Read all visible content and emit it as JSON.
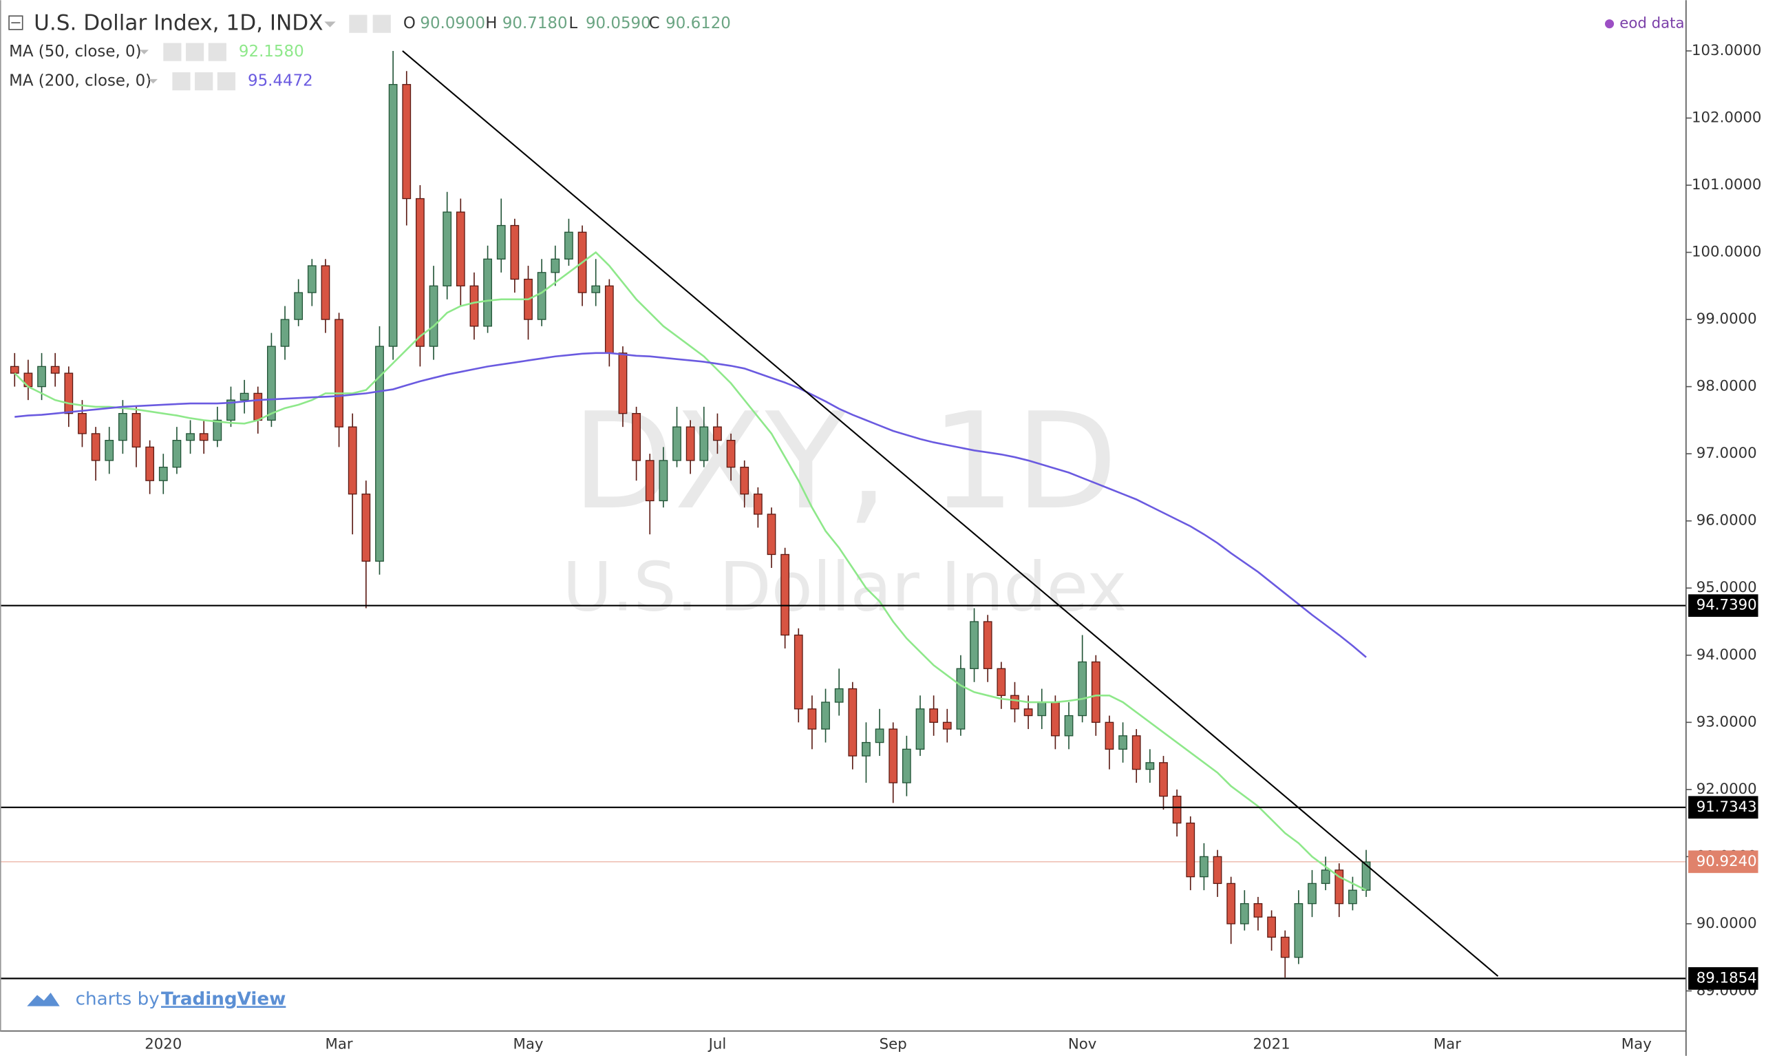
{
  "chart_data": {
    "type": "candlestick",
    "title": "U.S. Dollar Index, 1D, INDX",
    "ohlc": [
      {
        "label": "O",
        "value": "90.0900"
      },
      {
        "label": "H",
        "value": "90.7180"
      },
      {
        "label": "L",
        "value": "90.0590"
      },
      {
        "label": "C",
        "value": "90.6120"
      }
    ],
    "watermark": [
      "DXY, 1D",
      "U.S. Dollar Index"
    ],
    "source": "eod data",
    "branding": {
      "prefix": "charts by",
      "name": "TradingView"
    },
    "categories": [
      null,
      null,
      null,
      null,
      null,
      null,
      null,
      null,
      null,
      null,
      null,
      "2020",
      null,
      null,
      null,
      null,
      null,
      null,
      null,
      null,
      null,
      null,
      null,
      null,
      "Mar",
      null,
      null,
      null,
      null,
      null,
      null,
      null,
      null,
      null,
      null,
      null,
      null,
      null,
      "May",
      null,
      null,
      null,
      null,
      null,
      null,
      null,
      null,
      null,
      null,
      null,
      null,
      null,
      "Jul",
      null,
      null,
      null,
      null,
      null,
      null,
      null,
      null,
      null,
      null,
      null,
      null,
      "Sep",
      null,
      null,
      null,
      null,
      null,
      null,
      null,
      null,
      null,
      null,
      null,
      null,
      null,
      "Nov",
      null,
      null,
      null,
      null,
      null,
      null,
      null,
      null,
      null,
      null,
      null,
      null,
      null,
      "2021",
      null,
      null,
      null,
      null,
      null,
      null,
      null,
      null,
      null,
      null,
      null,
      null,
      "Mar",
      null,
      null,
      null,
      null,
      null,
      null,
      null,
      null,
      null,
      null,
      null,
      null,
      null,
      "May",
      null,
      null,
      null
    ],
    "open": [
      98.3,
      98.2,
      98.0,
      98.3,
      98.2,
      97.6,
      97.3,
      96.9,
      97.2,
      97.6,
      97.1,
      96.6,
      96.8,
      97.2,
      97.3,
      97.2,
      97.5,
      97.8,
      97.9,
      97.5,
      98.6,
      99.0,
      99.4,
      99.8,
      99.0,
      97.4,
      96.4,
      95.4,
      98.6,
      102.5,
      100.8,
      98.6,
      99.5,
      100.6,
      99.5,
      98.9,
      99.9,
      100.4,
      99.6,
      99.0,
      99.7,
      99.9,
      100.3,
      99.4,
      99.5,
      98.5,
      97.6,
      96.9,
      96.3,
      96.9,
      97.4,
      96.9,
      97.4,
      97.2,
      96.8,
      96.4,
      96.1,
      95.5,
      94.3,
      93.2,
      92.9,
      93.3,
      93.5,
      92.5,
      92.7,
      92.9,
      92.1,
      92.6,
      93.2,
      93.0,
      92.9,
      93.8,
      94.5,
      93.8,
      93.4,
      93.2,
      93.1,
      93.3,
      92.8,
      93.1,
      93.9,
      93.0,
      92.6,
      92.8,
      92.3,
      92.4,
      91.9,
      91.5,
      90.7,
      91.0,
      90.6,
      90.0,
      90.3,
      90.1,
      89.8,
      89.5,
      90.3,
      90.6,
      90.8,
      90.3,
      90.5,
      null,
      null,
      null,
      null,
      null,
      null,
      null,
      null,
      null,
      null,
      null,
      null,
      null,
      null,
      null,
      null,
      null,
      null,
      null,
      null,
      null,
      null,
      null
    ],
    "high": [
      98.5,
      98.4,
      98.5,
      98.5,
      98.3,
      97.8,
      97.4,
      97.4,
      97.8,
      97.7,
      97.2,
      97.0,
      97.4,
      97.5,
      97.5,
      97.7,
      98.0,
      98.1,
      98.0,
      98.8,
      99.2,
      99.6,
      99.9,
      99.9,
      99.1,
      97.6,
      96.6,
      98.9,
      103.0,
      102.7,
      101.0,
      99.8,
      100.9,
      100.8,
      99.7,
      100.1,
      100.8,
      100.5,
      99.8,
      99.9,
      100.1,
      100.5,
      100.4,
      99.9,
      99.6,
      98.6,
      97.7,
      97.0,
      97.1,
      97.7,
      97.5,
      97.7,
      97.6,
      97.3,
      96.9,
      96.5,
      96.2,
      95.6,
      94.4,
      93.4,
      93.5,
      93.8,
      93.6,
      93.0,
      93.2,
      93.0,
      92.8,
      93.4,
      93.4,
      93.2,
      94.0,
      94.7,
      94.6,
      93.9,
      93.6,
      93.4,
      93.5,
      93.4,
      93.3,
      94.3,
      94.0,
      93.1,
      93.0,
      92.9,
      92.6,
      92.5,
      92.0,
      91.6,
      91.2,
      91.1,
      90.7,
      90.5,
      90.4,
      90.2,
      89.9,
      90.5,
      90.8,
      91.0,
      90.9,
      90.7,
      91.1,
      null,
      null,
      null,
      null,
      null,
      null,
      null,
      null,
      null,
      null,
      null,
      null,
      null,
      null,
      null,
      null,
      null,
      null,
      null,
      null,
      null,
      null,
      null
    ],
    "low": [
      98.0,
      97.8,
      97.8,
      98.0,
      97.4,
      97.1,
      96.6,
      96.7,
      97.0,
      96.8,
      96.4,
      96.4,
      96.7,
      97.0,
      97.0,
      97.1,
      97.4,
      97.6,
      97.3,
      97.4,
      98.4,
      98.9,
      99.2,
      98.8,
      97.1,
      95.8,
      94.7,
      95.2,
      98.4,
      100.4,
      98.3,
      98.4,
      99.3,
      99.2,
      98.7,
      98.8,
      99.7,
      99.4,
      98.7,
      98.9,
      99.5,
      99.8,
      99.2,
      99.2,
      98.3,
      97.4,
      96.6,
      95.8,
      96.2,
      96.8,
      96.7,
      96.8,
      97.0,
      96.6,
      96.2,
      95.9,
      95.3,
      94.1,
      93.0,
      92.6,
      92.7,
      93.1,
      92.3,
      92.1,
      92.5,
      91.8,
      91.9,
      92.5,
      92.8,
      92.7,
      92.8,
      93.6,
      93.6,
      93.2,
      93.0,
      92.9,
      92.9,
      92.6,
      92.6,
      93.0,
      92.8,
      92.3,
      92.4,
      92.1,
      92.1,
      91.7,
      91.3,
      90.5,
      90.5,
      90.4,
      89.7,
      89.9,
      89.9,
      89.6,
      89.2,
      89.4,
      90.1,
      90.5,
      90.1,
      90.2,
      90.4,
      null,
      null,
      null,
      null,
      null,
      null,
      null,
      null,
      null,
      null,
      null,
      null,
      null,
      null,
      null,
      null,
      null,
      null,
      null,
      null,
      null,
      null,
      null
    ],
    "close": [
      98.2,
      98.0,
      98.3,
      98.2,
      97.6,
      97.3,
      96.9,
      97.2,
      97.6,
      97.1,
      96.6,
      96.8,
      97.2,
      97.3,
      97.2,
      97.5,
      97.8,
      97.9,
      97.5,
      98.6,
      99.0,
      99.4,
      99.8,
      99.0,
      97.4,
      96.4,
      95.4,
      98.6,
      102.5,
      100.8,
      98.6,
      99.5,
      100.6,
      99.5,
      98.9,
      99.9,
      100.4,
      99.6,
      99.0,
      99.7,
      99.9,
      100.3,
      99.4,
      99.5,
      98.5,
      97.6,
      96.9,
      96.3,
      96.9,
      97.4,
      96.9,
      97.4,
      97.2,
      96.8,
      96.4,
      96.1,
      95.5,
      94.3,
      93.2,
      92.9,
      93.3,
      93.5,
      92.5,
      92.7,
      92.9,
      92.1,
      92.6,
      93.2,
      93.0,
      92.9,
      93.8,
      94.5,
      93.8,
      93.4,
      93.2,
      93.1,
      93.3,
      92.8,
      93.1,
      93.9,
      93.0,
      92.6,
      92.8,
      92.3,
      92.4,
      91.9,
      91.5,
      90.7,
      91.0,
      90.6,
      90.0,
      90.3,
      90.1,
      89.8,
      89.5,
      90.3,
      90.6,
      90.8,
      90.3,
      90.5,
      90.92,
      null,
      null,
      null,
      null,
      null,
      null,
      null,
      null,
      null,
      null,
      null,
      null,
      null,
      null,
      null,
      null,
      null,
      null,
      null,
      null,
      null,
      null,
      null
    ],
    "colors": {
      "up": "#6ba583",
      "up_border": "#225437",
      "down": "#d75442",
      "down_border": "#5b1a13"
    },
    "series": [
      {
        "name": "MA (50, close, 0)",
        "legend_value": "92.1580",
        "color": "#8ee88a",
        "values": [
          98.2,
          98.0,
          97.9,
          97.8,
          97.75,
          97.72,
          97.7,
          97.7,
          97.68,
          97.66,
          97.63,
          97.6,
          97.57,
          97.53,
          97.5,
          97.48,
          97.46,
          97.45,
          97.5,
          97.6,
          97.68,
          97.73,
          97.8,
          97.9,
          97.9,
          97.9,
          97.95,
          98.15,
          98.35,
          98.55,
          98.75,
          98.9,
          99.1,
          99.2,
          99.25,
          99.28,
          99.3,
          99.3,
          99.3,
          99.4,
          99.55,
          99.7,
          99.85,
          100.0,
          99.8,
          99.55,
          99.3,
          99.1,
          98.9,
          98.75,
          98.6,
          98.45,
          98.25,
          98.05,
          97.8,
          97.55,
          97.3,
          96.95,
          96.6,
          96.2,
          95.85,
          95.6,
          95.3,
          95.0,
          94.8,
          94.5,
          94.25,
          94.05,
          93.85,
          93.7,
          93.55,
          93.45,
          93.4,
          93.35,
          93.33,
          93.3,
          93.3,
          93.3,
          93.32,
          93.35,
          93.4,
          93.4,
          93.3,
          93.15,
          93.0,
          92.85,
          92.7,
          92.55,
          92.4,
          92.25,
          92.05,
          91.9,
          91.75,
          91.55,
          91.35,
          91.2,
          91.0,
          90.85,
          90.7,
          90.6,
          90.5,
          null,
          null,
          null,
          null,
          null,
          null,
          null,
          null,
          null,
          null,
          null,
          null,
          null,
          null,
          null,
          null,
          null,
          null,
          null,
          null,
          null,
          null,
          null
        ]
      },
      {
        "name": "MA (200, close, 0)",
        "legend_value": "95.4472",
        "color": "#6a5ae0",
        "values": [
          97.55,
          97.57,
          97.58,
          97.6,
          97.62,
          97.64,
          97.66,
          97.68,
          97.7,
          97.71,
          97.72,
          97.73,
          97.74,
          97.75,
          97.75,
          97.75,
          97.76,
          97.78,
          97.8,
          97.81,
          97.82,
          97.83,
          97.84,
          97.85,
          97.86,
          97.88,
          97.9,
          97.93,
          97.96,
          98.02,
          98.08,
          98.13,
          98.18,
          98.22,
          98.26,
          98.3,
          98.33,
          98.36,
          98.39,
          98.42,
          98.45,
          98.47,
          98.49,
          98.5,
          98.5,
          98.48,
          98.46,
          98.45,
          98.43,
          98.41,
          98.39,
          98.37,
          98.34,
          98.31,
          98.27,
          98.2,
          98.13,
          98.06,
          97.98,
          97.88,
          97.78,
          97.67,
          97.58,
          97.5,
          97.42,
          97.34,
          97.28,
          97.22,
          97.17,
          97.13,
          97.09,
          97.05,
          97.02,
          96.99,
          96.95,
          96.9,
          96.84,
          96.78,
          96.72,
          96.64,
          96.56,
          96.48,
          96.4,
          96.32,
          96.22,
          96.12,
          96.02,
          95.92,
          95.8,
          95.67,
          95.52,
          95.38,
          95.24,
          95.08,
          94.92,
          94.76,
          94.6,
          94.45,
          94.3,
          94.14,
          93.97,
          null,
          null,
          null,
          null,
          null,
          null,
          null,
          null,
          null,
          null,
          null,
          null,
          null,
          null,
          null,
          null,
          null,
          null,
          null,
          null,
          null,
          null,
          null
        ]
      }
    ],
    "ylim": [
      88.403,
      103.755
    ],
    "yticks": [
      {
        "value": 89,
        "label": "89.0000"
      },
      {
        "value": 90,
        "label": "90.0000"
      },
      {
        "value": 91,
        "label": "91.0000"
      },
      {
        "value": 92,
        "label": "92.0000"
      },
      {
        "value": 93,
        "label": "93.0000"
      },
      {
        "value": 94,
        "label": "94.0000"
      },
      {
        "value": 95,
        "label": "95.0000"
      },
      {
        "value": 96,
        "label": "96.0000"
      },
      {
        "value": 97,
        "label": "97.0000"
      },
      {
        "value": 98,
        "label": "98.0000"
      },
      {
        "value": 99,
        "label": "99.0000"
      },
      {
        "value": 100,
        "label": "100.0000"
      },
      {
        "value": 101,
        "label": "101.0000"
      },
      {
        "value": 102,
        "label": "102.0000"
      },
      {
        "value": 103,
        "label": "103.0000"
      }
    ],
    "horizontal_lines": [
      {
        "value": 94.739,
        "label": "94.7390"
      },
      {
        "value": 91.7343,
        "label": "91.7343"
      },
      {
        "value": 89.1854,
        "label": "89.1854"
      }
    ],
    "last_price": {
      "value": 90.924,
      "label": "90.9240",
      "color": "#e0826b"
    },
    "trend_lines": [
      {
        "x": [
          28.7,
          109.75
        ],
        "y": [
          103.0,
          89.22
        ]
      }
    ]
  }
}
